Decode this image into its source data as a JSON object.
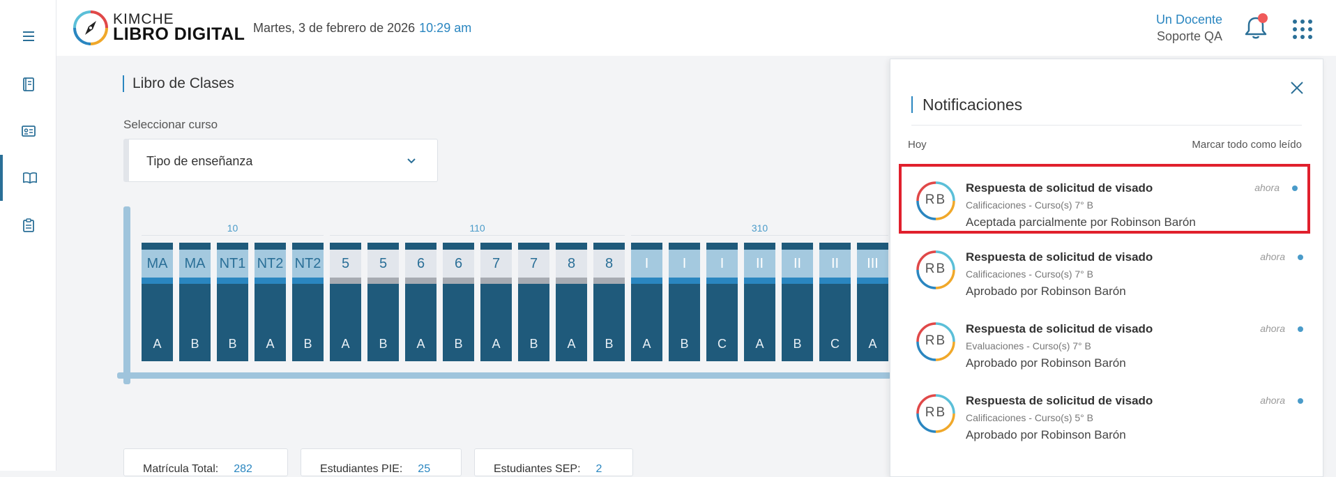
{
  "sidebar": {
    "items": [
      {
        "icon": "menu-icon"
      },
      {
        "icon": "notebook-icon"
      },
      {
        "icon": "id-card-icon"
      },
      {
        "icon": "open-book-icon",
        "active": true
      },
      {
        "icon": "clipboard-icon"
      }
    ]
  },
  "header": {
    "brand_line1": "KIMCHE",
    "brand_line2": "LIBRO DIGITAL",
    "date": "Martes, 3 de febrero de 2026",
    "time": "10:29 am",
    "user_name": "Un Docente",
    "user_role": "Soporte QA",
    "bell_icon": "bell-icon",
    "apps_icon": "apps-grid-icon"
  },
  "main": {
    "title": "Libro de Clases",
    "course_label": "Seleccionar curso",
    "course_value": "Tipo de enseñanza",
    "groups": [
      {
        "label": "10",
        "count": 5
      },
      {
        "label": "110",
        "count": 8
      },
      {
        "label": "310",
        "count": 7
      }
    ],
    "books": [
      {
        "grade": "MA",
        "section": "A",
        "kind": "kg"
      },
      {
        "grade": "MA",
        "section": "B",
        "kind": "kg"
      },
      {
        "grade": "NT1",
        "section": "B",
        "kind": "kg"
      },
      {
        "grade": "NT2",
        "section": "A",
        "kind": "kg"
      },
      {
        "grade": "NT2",
        "section": "B",
        "kind": "kg"
      },
      {
        "grade": "5",
        "section": "A",
        "kind": "pri"
      },
      {
        "grade": "5",
        "section": "B",
        "kind": "pri"
      },
      {
        "grade": "6",
        "section": "A",
        "kind": "pri"
      },
      {
        "grade": "6",
        "section": "B",
        "kind": "pri"
      },
      {
        "grade": "7",
        "section": "A",
        "kind": "pri"
      },
      {
        "grade": "7",
        "section": "B",
        "kind": "pri"
      },
      {
        "grade": "8",
        "section": "A",
        "kind": "pri"
      },
      {
        "grade": "8",
        "section": "B",
        "kind": "pri"
      },
      {
        "grade": "I",
        "section": "A",
        "kind": "sec"
      },
      {
        "grade": "I",
        "section": "B",
        "kind": "sec"
      },
      {
        "grade": "I",
        "section": "C",
        "kind": "sec"
      },
      {
        "grade": "II",
        "section": "A",
        "kind": "sec"
      },
      {
        "grade": "II",
        "section": "B",
        "kind": "sec"
      },
      {
        "grade": "II",
        "section": "C",
        "kind": "sec"
      },
      {
        "grade": "III",
        "section": "A",
        "kind": "sec"
      }
    ],
    "stats": [
      {
        "label": "Matrícula Total:",
        "value": "282"
      },
      {
        "label": "Estudiantes PIE:",
        "value": "25"
      },
      {
        "label": "Estudiantes SEP:",
        "value": "2"
      }
    ]
  },
  "notifications": {
    "title": "Notificaciones",
    "today_label": "Hoy",
    "mark_all_label": "Marcar todo como leído",
    "items": [
      {
        "initials": "RB",
        "title": "Respuesta de solicitud de visado",
        "subtitle": "Calificaciones - Curso(s) 7° B",
        "body": "Aceptada parcialmente por Robinson Barón",
        "time": "ahora",
        "highlighted": true
      },
      {
        "initials": "RB",
        "title": "Respuesta de solicitud de visado",
        "subtitle": "Calificaciones - Curso(s) 7° B",
        "body": "Aprobado por Robinson Barón",
        "time": "ahora",
        "highlighted": false
      },
      {
        "initials": "RB",
        "title": "Respuesta de solicitud de visado",
        "subtitle": "Evaluaciones - Curso(s) 7° B",
        "body": "Aprobado por Robinson Barón",
        "time": "ahora",
        "highlighted": false
      },
      {
        "initials": "RB",
        "title": "Respuesta de solicitud de visado",
        "subtitle": "Calificaciones - Curso(s) 5° B",
        "body": "Aprobado por Robinson Barón",
        "time": "ahora",
        "highlighted": false
      }
    ]
  },
  "colors": {
    "accent": "#2a86c0",
    "dark": "#1f5a7b",
    "highlight": "#e0202d",
    "alert": "#f05a5a"
  }
}
